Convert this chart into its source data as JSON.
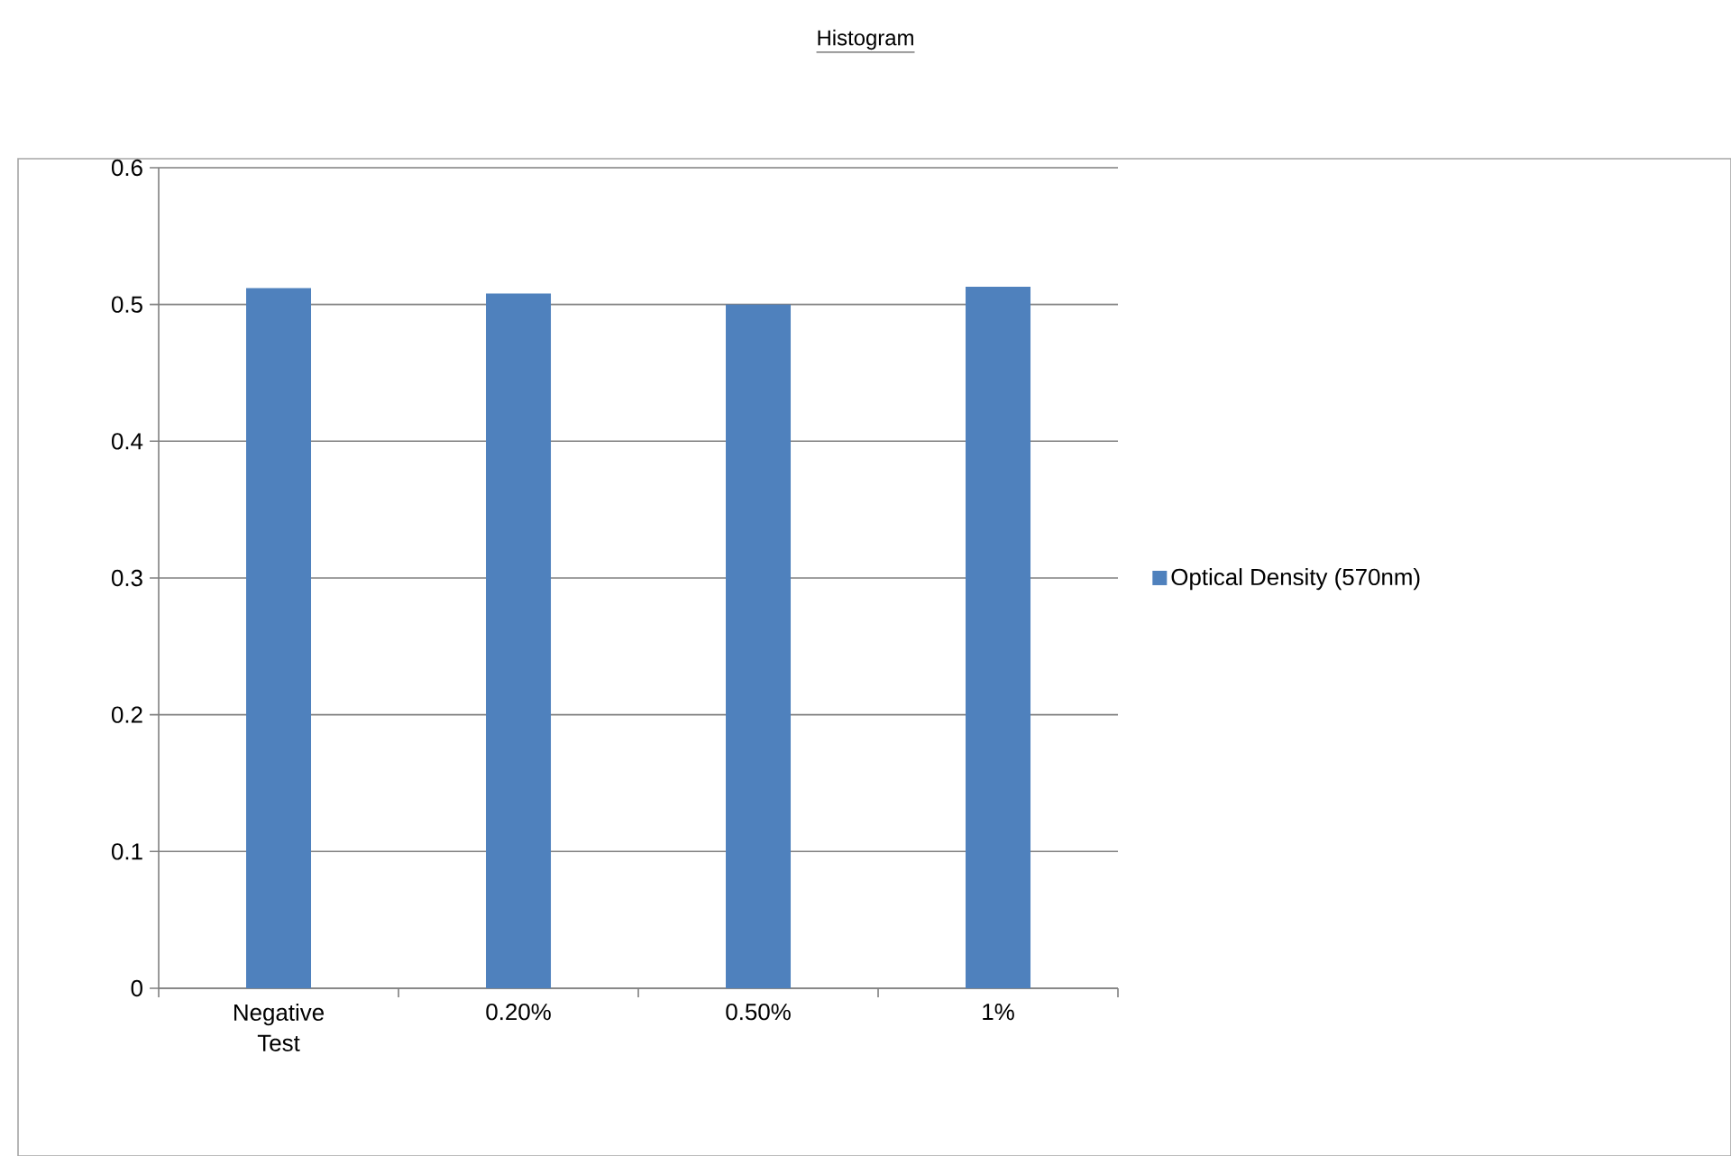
{
  "chart_data": {
    "type": "bar",
    "title": "Histogram",
    "categories": [
      "Negative Test",
      "0.20%",
      "0.50%",
      "1%"
    ],
    "series": [
      {
        "name": "Optical Density (570nm)",
        "color": "#4f81bd",
        "values": [
          0.512,
          0.508,
          0.5,
          0.513
        ]
      }
    ],
    "ylim": [
      0,
      0.6
    ],
    "yticks": [
      0,
      0.1,
      0.2,
      0.3,
      0.4,
      0.5,
      0.6
    ],
    "grid": "y",
    "legend": "right"
  }
}
